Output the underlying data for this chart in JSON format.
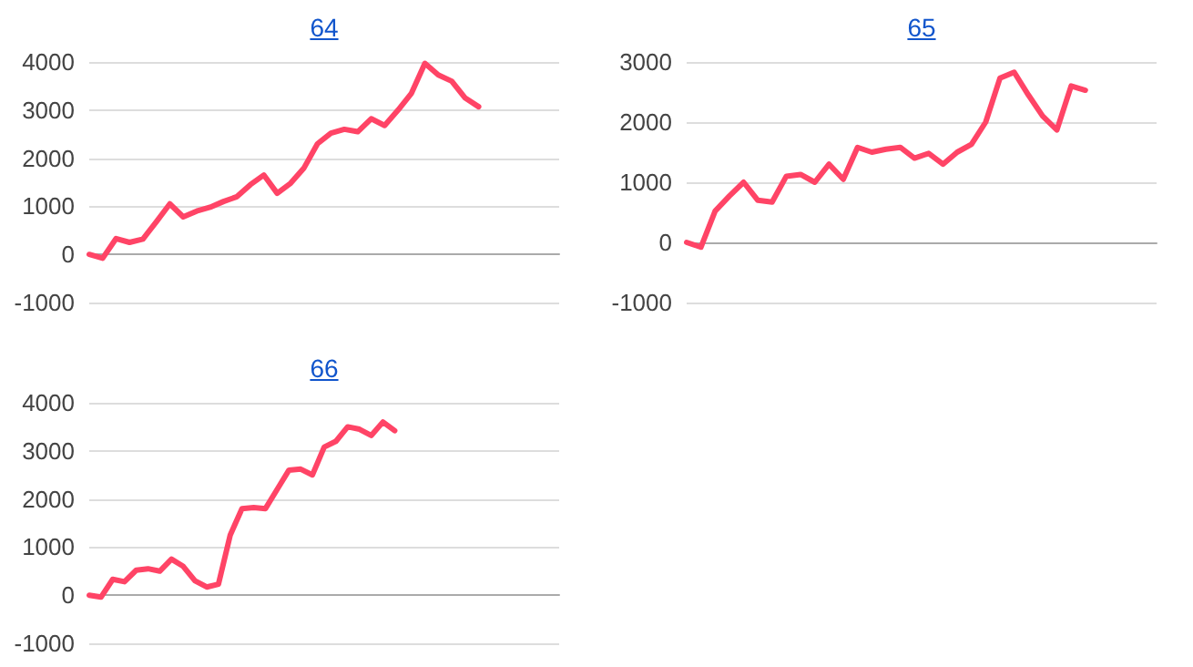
{
  "chart_data": [
    {
      "type": "line",
      "title": "64",
      "categories": [
        null,
        null,
        null,
        null,
        null,
        null,
        null,
        null,
        null,
        null,
        null,
        null,
        null,
        null,
        null,
        null,
        null,
        null,
        null,
        null,
        null,
        null,
        null,
        null,
        null,
        null,
        null,
        null,
        null,
        null,
        null,
        null,
        null,
        null,
        null,
        null
      ],
      "series": [
        {
          "color": "#ff4466",
          "values": [
            0,
            -80,
            330,
            250,
            320,
            680,
            1050,
            780,
            900,
            980,
            1100,
            1200,
            1450,
            1650,
            1270,
            1480,
            1800,
            2300,
            2520,
            2600,
            2550,
            2820,
            2680,
            3000,
            3350,
            3970,
            3730,
            3600,
            3250,
            3070,
            null,
            null,
            null,
            null,
            null,
            null
          ]
        }
      ],
      "ylim": [
        -1000,
        4000
      ],
      "yticks": [
        -1000,
        0,
        1000,
        2000,
        3000,
        4000
      ],
      "grid": "y",
      "tick_labels": "y",
      "line_style": "solid"
    },
    {
      "type": "line",
      "title": "65",
      "categories": [
        null,
        null,
        null,
        null,
        null,
        null,
        null,
        null,
        null,
        null,
        null,
        null,
        null,
        null,
        null,
        null,
        null,
        null,
        null,
        null,
        null,
        null,
        null,
        null,
        null,
        null,
        null,
        null,
        null,
        null,
        null,
        null,
        null,
        null
      ],
      "series": [
        {
          "color": "#ff4466",
          "values": [
            0,
            -80,
            520,
            770,
            1000,
            700,
            670,
            1100,
            1130,
            1000,
            1300,
            1050,
            1580,
            1500,
            1550,
            1580,
            1400,
            1480,
            1300,
            1500,
            1630,
            2000,
            2730,
            2830,
            2450,
            2100,
            1870,
            2600,
            2530,
            null,
            null,
            null,
            null,
            null
          ]
        }
      ],
      "ylim": [
        -1000,
        3000
      ],
      "yticks": [
        -1000,
        0,
        1000,
        2000,
        3000
      ],
      "grid": "y",
      "tick_labels": "y",
      "line_style": "solid"
    },
    {
      "type": "line",
      "title": "66",
      "categories": [
        null,
        null,
        null,
        null,
        null,
        null,
        null,
        null,
        null,
        null,
        null,
        null,
        null,
        null,
        null,
        null,
        null,
        null,
        null,
        null,
        null,
        null,
        null,
        null,
        null,
        null,
        null,
        null,
        null,
        null,
        null,
        null,
        null,
        null,
        null,
        null,
        null,
        null,
        null,
        null,
        null
      ],
      "series": [
        {
          "color": "#ff4466",
          "values": [
            0,
            -40,
            330,
            280,
            520,
            550,
            500,
            750,
            600,
            300,
            170,
            230,
            1250,
            1800,
            1820,
            1800,
            2200,
            2600,
            2620,
            2500,
            3080,
            3200,
            3500,
            3450,
            3320,
            3600,
            3420,
            null,
            null,
            null,
            null,
            null,
            null,
            null,
            null,
            null,
            null,
            null,
            null,
            null,
            null
          ]
        }
      ],
      "ylim": [
        -1000,
        4000
      ],
      "yticks": [
        -1000,
        0,
        1000,
        2000,
        3000,
        4000
      ],
      "grid": "y",
      "tick_labels": "y",
      "line_style": "solid"
    }
  ]
}
